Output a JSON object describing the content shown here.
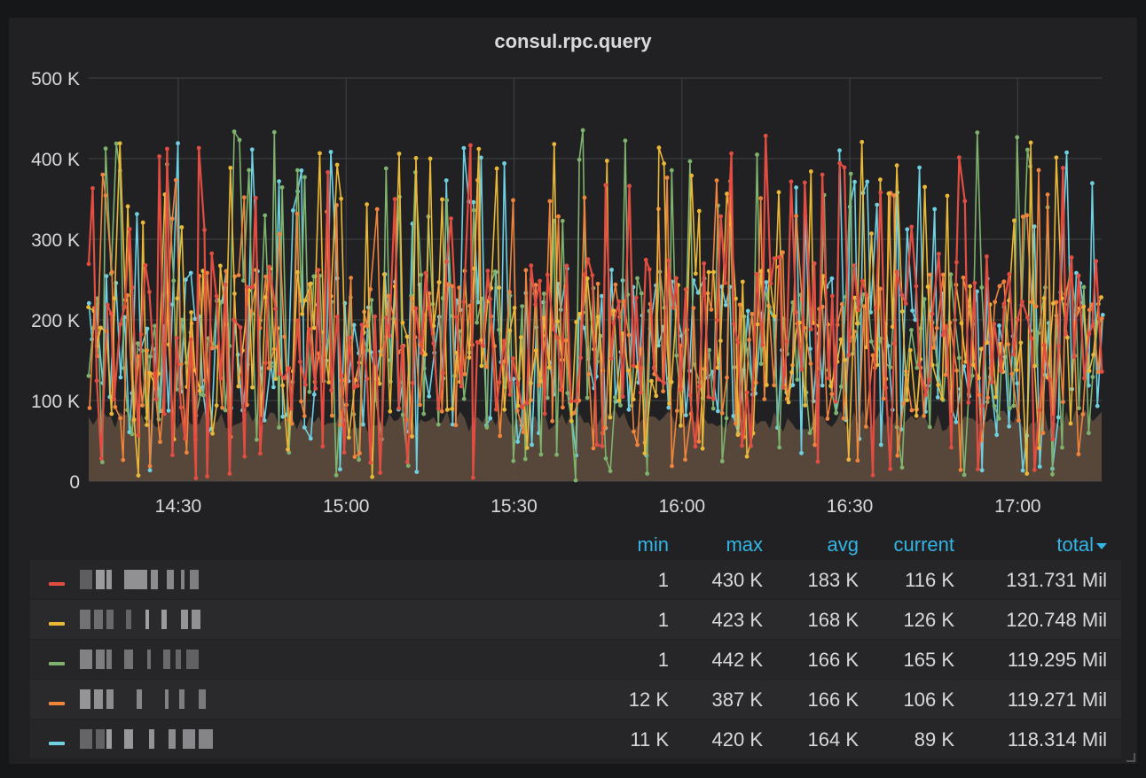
{
  "panel": {
    "title": "consul.rpc.query"
  },
  "chart_data": {
    "type": "line",
    "title": "consul.rpc.query",
    "xlabel": "",
    "ylabel": "",
    "x_ticks": [
      "14:30",
      "15:00",
      "15:30",
      "16:00",
      "16:30",
      "17:00"
    ],
    "x_range": [
      "14:14",
      "17:15"
    ],
    "y_ticks": [
      "0",
      "100 K",
      "200 K",
      "300 K",
      "400 K",
      "500 K"
    ],
    "ylim": [
      0,
      500000
    ],
    "grid": true,
    "legend_placement": "bottom-table",
    "series": [
      {
        "color": "#e24d42",
        "min": 1,
        "max": 430000,
        "avg": 183000,
        "current": 116000
      },
      {
        "color": "#eab839",
        "min": 1,
        "max": 423000,
        "avg": 168000,
        "current": 126000
      },
      {
        "color": "#7eb26d",
        "min": 1,
        "max": 442000,
        "avg": 166000,
        "current": 165000
      },
      {
        "color": "#ef843c",
        "min": 12000,
        "max": 387000,
        "avg": 166000,
        "current": 106000
      },
      {
        "color": "#6ed0e0",
        "min": 11000,
        "max": 420000,
        "avg": 164000,
        "current": 89000
      }
    ],
    "baseline_fill": {
      "color": "#5a4a3c",
      "approx_value": 75000
    }
  },
  "legend": {
    "headers": {
      "min": "min",
      "max": "max",
      "avg": "avg",
      "current": "current",
      "total": "total"
    },
    "rows": [
      {
        "min": "1",
        "max": "430 K",
        "avg": "183 K",
        "current": "116 K",
        "total": "131.731 Mil"
      },
      {
        "min": "1",
        "max": "423 K",
        "avg": "168 K",
        "current": "126 K",
        "total": "120.748 Mil"
      },
      {
        "min": "1",
        "max": "442 K",
        "avg": "166 K",
        "current": "165 K",
        "total": "119.295 Mil"
      },
      {
        "min": "12 K",
        "max": "387 K",
        "avg": "166 K",
        "current": "106 K",
        "total": "119.271 Mil"
      },
      {
        "min": "11 K",
        "max": "420 K",
        "avg": "164 K",
        "current": "89 K",
        "total": "118.314 Mil"
      }
    ]
  }
}
